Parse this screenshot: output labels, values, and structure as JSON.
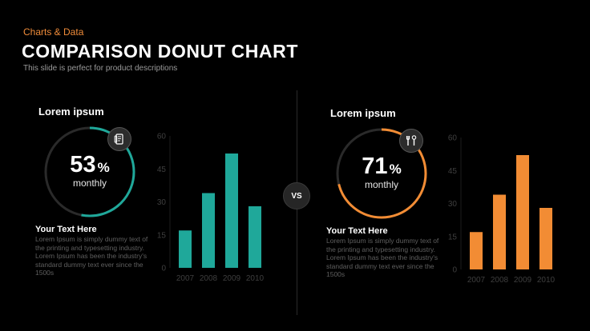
{
  "header": {
    "kicker": "Charts & Data",
    "title": "COMPARISON  DONUT CHART",
    "subtitle": "This slide is perfect for product descriptions"
  },
  "vs_label": "VS",
  "colors": {
    "left": "#1fa89a",
    "right": "#f28c34",
    "track": "#2a2a2a",
    "axis_text": "#3f3f3f"
  },
  "panels": [
    {
      "heading": "Lorem ipsum",
      "percent": "53",
      "percent_symbol": "%",
      "caption": "monthly",
      "donut_fraction": 0.53,
      "icon": "tablet-icon",
      "text_heading": "Your  Text Here",
      "body": "Lorem Ipsum is simply dummy text of the printing and typesetting industry. Lorem Ipsum has been the industry's standard dummy text ever since the 1500s"
    },
    {
      "heading": "Lorem ipsum",
      "percent": "71",
      "percent_symbol": "%",
      "caption": "monthly",
      "donut_fraction": 0.71,
      "icon": "tools-icon",
      "text_heading": "Your  Text Here",
      "body": "Lorem Ipsum is simply dummy text of the printing and typesetting industry. Lorem Ipsum has been the industry's standard dummy text ever since the 1500s"
    }
  ],
  "chart_data": [
    {
      "type": "bar",
      "categories": [
        "2007",
        "2008",
        "2009",
        "2010"
      ],
      "values": [
        17,
        34,
        52,
        28
      ],
      "ylim": [
        0,
        60
      ],
      "yticks": [
        "0",
        "15",
        "30",
        "45",
        "60"
      ],
      "grid": false,
      "color": "#1fa89a"
    },
    {
      "type": "bar",
      "categories": [
        "2007",
        "2008",
        "2009",
        "2010"
      ],
      "values": [
        17,
        34,
        52,
        28
      ],
      "ylim": [
        0,
        60
      ],
      "yticks": [
        "0",
        "15",
        "30",
        "45",
        "60"
      ],
      "grid": false,
      "color": "#f28c34"
    }
  ]
}
